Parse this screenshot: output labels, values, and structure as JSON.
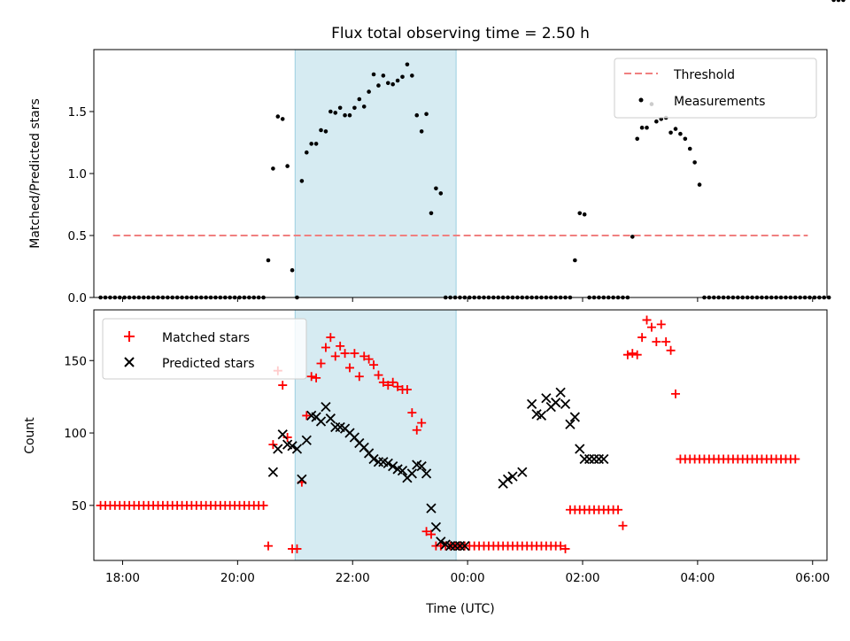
{
  "chart_data": [
    {
      "type": "scatter",
      "title": "Flux total observing time = 2.50 h",
      "xlabel": "",
      "ylabel": "Matched/Predicted stars",
      "xlim": [
        "17:30",
        "06:15"
      ],
      "ylim": [
        0,
        2.0
      ],
      "yticks": [
        "0.0",
        "0.5",
        "1.0",
        "1.5"
      ],
      "shaded_interval": [
        "21:00",
        "23:48"
      ],
      "legend_position": "upper right",
      "threshold": {
        "name": "Threshold",
        "value": 0.5,
        "x_range": [
          "17:50",
          "05:55"
        ],
        "color": "#f08080"
      },
      "measurements_name": "Measurements",
      "points_time_min": [
        -23,
        -18,
        -13,
        -8,
        -3,
        2,
        7,
        12,
        17,
        22,
        27,
        32,
        37,
        42,
        47,
        52,
        57,
        62,
        67,
        72,
        77,
        82,
        87,
        92,
        97,
        102,
        107,
        112,
        117,
        122,
        127,
        132,
        137,
        142,
        147,
        152,
        157,
        162,
        167,
        172,
        177,
        182,
        187,
        192,
        197,
        202,
        207,
        212,
        217,
        222,
        227,
        232,
        237,
        242,
        247,
        252,
        257,
        262,
        267,
        272,
        277,
        282,
        287,
        292,
        297,
        302,
        307,
        312,
        317,
        322,
        327,
        332,
        337,
        342,
        347,
        352,
        357,
        362,
        367,
        372,
        377,
        382,
        387,
        392,
        397,
        402,
        407,
        412,
        417,
        422,
        427,
        432,
        437,
        442,
        447,
        452,
        457,
        462,
        467,
        472,
        477,
        482,
        487,
        492,
        497,
        502,
        507,
        512,
        517,
        522,
        527,
        532,
        537,
        542,
        547,
        552,
        557,
        562,
        567,
        572,
        577,
        582,
        587,
        592,
        597,
        602,
        607,
        612,
        617,
        622,
        627,
        632,
        637,
        642,
        647,
        652,
        657,
        662,
        667,
        672,
        677,
        682,
        687,
        692,
        697,
        702,
        707,
        712,
        717,
        722,
        727,
        732,
        737,
        742,
        747,
        752
      ],
      "points_ratio": [
        0,
        0,
        0,
        0,
        0,
        0,
        0,
        0,
        0,
        0,
        0,
        0,
        0,
        0,
        0,
        0,
        0,
        0,
        0,
        0,
        0,
        0,
        0,
        0,
        0,
        0,
        0,
        0,
        0,
        0,
        0,
        0,
        0,
        0,
        0,
        0.3,
        1.04,
        1.46,
        1.44,
        1.06,
        0.22,
        0,
        0.94,
        1.17,
        1.24,
        1.24,
        1.35,
        1.34,
        1.5,
        1.49,
        1.53,
        1.47,
        1.47,
        1.53,
        1.6,
        1.54,
        1.66,
        1.8,
        1.71,
        1.79,
        1.73,
        1.72,
        1.75,
        1.78,
        1.88,
        1.79,
        1.47,
        1.34,
        1.48,
        0.68,
        0.88,
        0.84,
        0,
        0,
        0,
        0,
        0,
        0,
        0,
        0,
        0,
        0,
        0,
        0,
        0,
        0,
        0,
        0,
        0,
        0,
        0,
        0,
        0,
        0,
        0,
        0,
        0,
        0,
        0,
        0.3,
        0.68,
        0.67,
        0,
        0,
        0,
        0,
        0,
        0,
        0,
        0,
        0,
        0.49,
        1.28,
        1.37,
        1.37,
        1.56,
        1.42,
        1.44,
        1.45,
        1.33,
        1.36,
        1.32,
        1.28,
        1.2,
        1.09,
        0.91,
        0,
        0,
        0,
        0,
        0,
        0,
        0,
        0,
        0,
        0,
        0,
        0,
        0,
        0,
        0,
        0,
        0,
        0,
        0,
        0,
        0,
        0,
        0,
        0,
        0,
        0,
        0
      ]
    },
    {
      "type": "scatter",
      "title": "",
      "xlabel": "Time (UTC)",
      "ylabel": "Count",
      "xlim": [
        "17:30",
        "06:15"
      ],
      "ylim": [
        12,
        185
      ],
      "yticks": [
        "50",
        "100",
        "150"
      ],
      "xticks": [
        "18:00",
        "20:00",
        "22:00",
        "00:00",
        "02:00",
        "04:00",
        "06:00"
      ],
      "shaded_interval": [
        "21:00",
        "23:48"
      ],
      "legend_position": "upper left",
      "series": [
        {
          "name": "Matched stars",
          "marker": "plus",
          "color": "#ff0000",
          "time_min": [
            -23,
            -18,
            -13,
            -8,
            -3,
            2,
            7,
            12,
            17,
            22,
            27,
            32,
            37,
            42,
            47,
            52,
            57,
            62,
            67,
            72,
            77,
            82,
            87,
            92,
            97,
            102,
            107,
            112,
            117,
            122,
            127,
            132,
            137,
            142,
            147,
            152,
            157,
            162,
            167,
            172,
            177,
            182,
            187,
            192,
            197,
            202,
            207,
            212,
            217,
            222,
            227,
            232,
            237,
            242,
            247,
            252,
            257,
            262,
            267,
            272,
            277,
            282,
            287,
            292,
            297,
            302,
            307,
            312,
            317,
            322,
            327,
            332,
            337,
            342,
            347,
            352,
            357,
            362,
            367,
            372,
            377,
            382,
            387,
            392,
            397,
            402,
            407,
            412,
            417,
            422,
            427,
            432,
            437,
            442,
            447,
            452,
            457,
            462,
            467,
            472,
            477,
            482,
            487,
            492,
            497,
            502,
            507,
            512,
            517,
            522,
            527,
            532,
            537,
            542,
            547,
            552,
            557,
            562,
            567,
            572,
            577,
            582,
            587,
            592,
            597,
            602,
            607,
            612,
            617,
            622,
            627,
            632,
            637,
            642,
            647,
            652,
            657,
            662,
            667,
            672,
            677,
            682,
            687,
            692,
            697,
            702,
            707,
            712,
            717,
            722,
            727,
            732,
            737,
            742,
            747,
            752
          ],
          "values": [
            50,
            50,
            50,
            50,
            50,
            50,
            50,
            50,
            50,
            50,
            50,
            50,
            50,
            50,
            50,
            50,
            50,
            50,
            50,
            50,
            50,
            50,
            50,
            50,
            50,
            50,
            50,
            50,
            50,
            50,
            50,
            50,
            50,
            50,
            50,
            22,
            92,
            143,
            133,
            97,
            20,
            20,
            66,
            112,
            139,
            138,
            148,
            159,
            166,
            153,
            160,
            155,
            145,
            155,
            139,
            153,
            151,
            147,
            140,
            135,
            133,
            135,
            132,
            130,
            130,
            114,
            102,
            107,
            32,
            30,
            22,
            22,
            22,
            22,
            22,
            22,
            22,
            22,
            22,
            22,
            22,
            22,
            22,
            22,
            22,
            22,
            22,
            22,
            22,
            22,
            22,
            22,
            22,
            22,
            22,
            22,
            22,
            20,
            47,
            47,
            47,
            47,
            47,
            47,
            47,
            47,
            47,
            47,
            47,
            36,
            154,
            155,
            154,
            166,
            178,
            173,
            163,
            175,
            163,
            157,
            127,
            82,
            82,
            82,
            82,
            82,
            82,
            82,
            82,
            82,
            82,
            82,
            82,
            82,
            82,
            82,
            82,
            82,
            82,
            82,
            82,
            82,
            82,
            82,
            82,
            82
          ]
        },
        {
          "name": "Predicted stars",
          "marker": "x",
          "color": "#000000",
          "time_min": [
            157,
            162,
            167,
            172,
            177,
            182,
            187,
            192,
            197,
            202,
            207,
            212,
            217,
            222,
            227,
            232,
            237,
            242,
            247,
            252,
            257,
            262,
            267,
            272,
            277,
            282,
            287,
            292,
            297,
            302,
            307,
            312,
            317,
            322,
            327,
            332,
            337,
            342,
            347,
            352,
            357,
            397,
            402,
            407,
            417,
            427,
            432,
            437,
            442,
            447,
            452,
            457,
            462,
            467,
            472,
            477,
            482,
            487,
            492,
            497,
            502
          ],
          "values": [
            73,
            89,
            99,
            92,
            91,
            89,
            68,
            95,
            112,
            111,
            108,
            118,
            110,
            104,
            104,
            103,
            100,
            97,
            93,
            90,
            86,
            82,
            80,
            80,
            79,
            77,
            75,
            74,
            69,
            72,
            78,
            77,
            72,
            48,
            35,
            25,
            23,
            22,
            22,
            22,
            22,
            65,
            68,
            70,
            73,
            120,
            113,
            112,
            124,
            118,
            121,
            128,
            120,
            106,
            111,
            89,
            82,
            82,
            82,
            82,
            82
          ]
        }
      ]
    }
  ]
}
